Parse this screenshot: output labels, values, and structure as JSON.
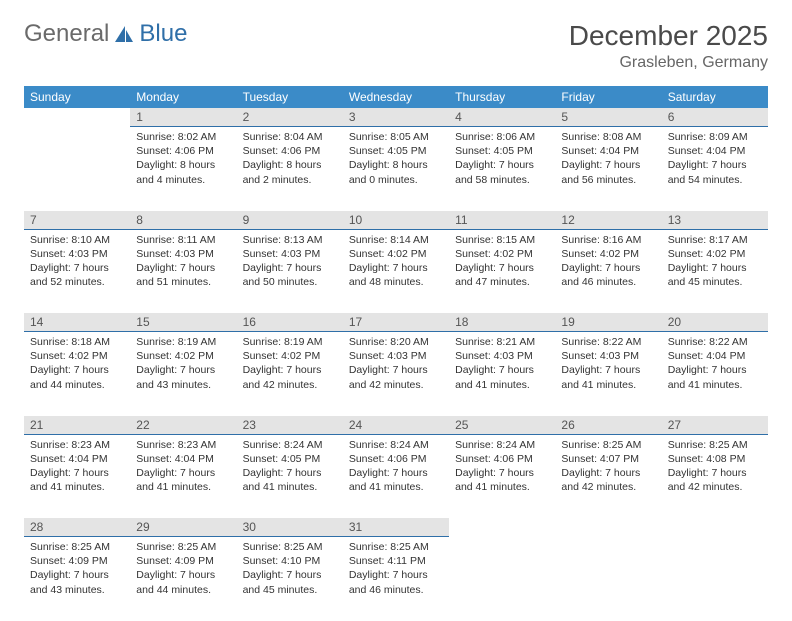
{
  "logo": {
    "text1": "General",
    "text2": "Blue"
  },
  "title": "December 2025",
  "location": "Grasleben, Germany",
  "weekdays": [
    "Sunday",
    "Monday",
    "Tuesday",
    "Wednesday",
    "Thursday",
    "Friday",
    "Saturday"
  ],
  "colors": {
    "header_bg": "#3b8bc8",
    "daynum_bg": "#e4e4e4",
    "rule": "#2f6fa8",
    "text": "#333333",
    "title": "#4a4a4a"
  },
  "weeks": [
    {
      "nums": [
        "",
        "1",
        "2",
        "3",
        "4",
        "5",
        "6"
      ],
      "cells": [
        null,
        {
          "sunrise": "Sunrise: 8:02 AM",
          "sunset": "Sunset: 4:06 PM",
          "day1": "Daylight: 8 hours",
          "day2": "and 4 minutes."
        },
        {
          "sunrise": "Sunrise: 8:04 AM",
          "sunset": "Sunset: 4:06 PM",
          "day1": "Daylight: 8 hours",
          "day2": "and 2 minutes."
        },
        {
          "sunrise": "Sunrise: 8:05 AM",
          "sunset": "Sunset: 4:05 PM",
          "day1": "Daylight: 8 hours",
          "day2": "and 0 minutes."
        },
        {
          "sunrise": "Sunrise: 8:06 AM",
          "sunset": "Sunset: 4:05 PM",
          "day1": "Daylight: 7 hours",
          "day2": "and 58 minutes."
        },
        {
          "sunrise": "Sunrise: 8:08 AM",
          "sunset": "Sunset: 4:04 PM",
          "day1": "Daylight: 7 hours",
          "day2": "and 56 minutes."
        },
        {
          "sunrise": "Sunrise: 8:09 AM",
          "sunset": "Sunset: 4:04 PM",
          "day1": "Daylight: 7 hours",
          "day2": "and 54 minutes."
        }
      ]
    },
    {
      "nums": [
        "7",
        "8",
        "9",
        "10",
        "11",
        "12",
        "13"
      ],
      "cells": [
        {
          "sunrise": "Sunrise: 8:10 AM",
          "sunset": "Sunset: 4:03 PM",
          "day1": "Daylight: 7 hours",
          "day2": "and 52 minutes."
        },
        {
          "sunrise": "Sunrise: 8:11 AM",
          "sunset": "Sunset: 4:03 PM",
          "day1": "Daylight: 7 hours",
          "day2": "and 51 minutes."
        },
        {
          "sunrise": "Sunrise: 8:13 AM",
          "sunset": "Sunset: 4:03 PM",
          "day1": "Daylight: 7 hours",
          "day2": "and 50 minutes."
        },
        {
          "sunrise": "Sunrise: 8:14 AM",
          "sunset": "Sunset: 4:02 PM",
          "day1": "Daylight: 7 hours",
          "day2": "and 48 minutes."
        },
        {
          "sunrise": "Sunrise: 8:15 AM",
          "sunset": "Sunset: 4:02 PM",
          "day1": "Daylight: 7 hours",
          "day2": "and 47 minutes."
        },
        {
          "sunrise": "Sunrise: 8:16 AM",
          "sunset": "Sunset: 4:02 PM",
          "day1": "Daylight: 7 hours",
          "day2": "and 46 minutes."
        },
        {
          "sunrise": "Sunrise: 8:17 AM",
          "sunset": "Sunset: 4:02 PM",
          "day1": "Daylight: 7 hours",
          "day2": "and 45 minutes."
        }
      ]
    },
    {
      "nums": [
        "14",
        "15",
        "16",
        "17",
        "18",
        "19",
        "20"
      ],
      "cells": [
        {
          "sunrise": "Sunrise: 8:18 AM",
          "sunset": "Sunset: 4:02 PM",
          "day1": "Daylight: 7 hours",
          "day2": "and 44 minutes."
        },
        {
          "sunrise": "Sunrise: 8:19 AM",
          "sunset": "Sunset: 4:02 PM",
          "day1": "Daylight: 7 hours",
          "day2": "and 43 minutes."
        },
        {
          "sunrise": "Sunrise: 8:19 AM",
          "sunset": "Sunset: 4:02 PM",
          "day1": "Daylight: 7 hours",
          "day2": "and 42 minutes."
        },
        {
          "sunrise": "Sunrise: 8:20 AM",
          "sunset": "Sunset: 4:03 PM",
          "day1": "Daylight: 7 hours",
          "day2": "and 42 minutes."
        },
        {
          "sunrise": "Sunrise: 8:21 AM",
          "sunset": "Sunset: 4:03 PM",
          "day1": "Daylight: 7 hours",
          "day2": "and 41 minutes."
        },
        {
          "sunrise": "Sunrise: 8:22 AM",
          "sunset": "Sunset: 4:03 PM",
          "day1": "Daylight: 7 hours",
          "day2": "and 41 minutes."
        },
        {
          "sunrise": "Sunrise: 8:22 AM",
          "sunset": "Sunset: 4:04 PM",
          "day1": "Daylight: 7 hours",
          "day2": "and 41 minutes."
        }
      ]
    },
    {
      "nums": [
        "21",
        "22",
        "23",
        "24",
        "25",
        "26",
        "27"
      ],
      "cells": [
        {
          "sunrise": "Sunrise: 8:23 AM",
          "sunset": "Sunset: 4:04 PM",
          "day1": "Daylight: 7 hours",
          "day2": "and 41 minutes."
        },
        {
          "sunrise": "Sunrise: 8:23 AM",
          "sunset": "Sunset: 4:04 PM",
          "day1": "Daylight: 7 hours",
          "day2": "and 41 minutes."
        },
        {
          "sunrise": "Sunrise: 8:24 AM",
          "sunset": "Sunset: 4:05 PM",
          "day1": "Daylight: 7 hours",
          "day2": "and 41 minutes."
        },
        {
          "sunrise": "Sunrise: 8:24 AM",
          "sunset": "Sunset: 4:06 PM",
          "day1": "Daylight: 7 hours",
          "day2": "and 41 minutes."
        },
        {
          "sunrise": "Sunrise: 8:24 AM",
          "sunset": "Sunset: 4:06 PM",
          "day1": "Daylight: 7 hours",
          "day2": "and 41 minutes."
        },
        {
          "sunrise": "Sunrise: 8:25 AM",
          "sunset": "Sunset: 4:07 PM",
          "day1": "Daylight: 7 hours",
          "day2": "and 42 minutes."
        },
        {
          "sunrise": "Sunrise: 8:25 AM",
          "sunset": "Sunset: 4:08 PM",
          "day1": "Daylight: 7 hours",
          "day2": "and 42 minutes."
        }
      ]
    },
    {
      "nums": [
        "28",
        "29",
        "30",
        "31",
        "",
        "",
        ""
      ],
      "cells": [
        {
          "sunrise": "Sunrise: 8:25 AM",
          "sunset": "Sunset: 4:09 PM",
          "day1": "Daylight: 7 hours",
          "day2": "and 43 minutes."
        },
        {
          "sunrise": "Sunrise: 8:25 AM",
          "sunset": "Sunset: 4:09 PM",
          "day1": "Daylight: 7 hours",
          "day2": "and 44 minutes."
        },
        {
          "sunrise": "Sunrise: 8:25 AM",
          "sunset": "Sunset: 4:10 PM",
          "day1": "Daylight: 7 hours",
          "day2": "and 45 minutes."
        },
        {
          "sunrise": "Sunrise: 8:25 AM",
          "sunset": "Sunset: 4:11 PM",
          "day1": "Daylight: 7 hours",
          "day2": "and 46 minutes."
        },
        null,
        null,
        null
      ]
    }
  ]
}
